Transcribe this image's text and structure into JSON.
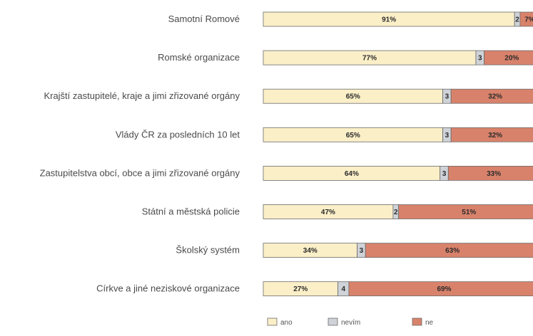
{
  "chart_data": {
    "type": "bar",
    "orientation": "horizontal",
    "stacked": true,
    "percent_stacked": true,
    "title": "",
    "xlabel": "",
    "ylabel": "",
    "xlim": [
      0,
      100
    ],
    "grid": false,
    "legend_position": "bottom",
    "categories": [
      "Samotní Romové",
      "Romské organizace",
      "Krajští zastupitelé, kraje a jimi zřizované orgány",
      "Vlády ČR za posledních 10 let",
      "Zastupitelstva obcí, obce a jimi zřizované orgány",
      "Státní a městská policie",
      "Školský systém",
      "Církve a jiné neziskové organizace"
    ],
    "series": [
      {
        "name": "ano",
        "color": "#fbefc8",
        "values": [
          91,
          77,
          65,
          65,
          64,
          47,
          34,
          27
        ],
        "labels": [
          "91%",
          "77%",
          "65%",
          "65%",
          "64%",
          "47%",
          "34%",
          "27%"
        ]
      },
      {
        "name": "nevím",
        "color": "#cfd3d8",
        "values": [
          2,
          3,
          3,
          3,
          3,
          2,
          3,
          4
        ],
        "labels": [
          "2",
          "3",
          "3",
          "3",
          "3",
          "2",
          "3",
          "4"
        ]
      },
      {
        "name": "ne",
        "color": "#d9826b",
        "values": [
          7,
          20,
          32,
          32,
          33,
          51,
          63,
          69
        ],
        "labels": [
          "7%",
          "20%",
          "32%",
          "32%",
          "33%",
          "51%",
          "63%",
          "69%"
        ]
      }
    ]
  }
}
